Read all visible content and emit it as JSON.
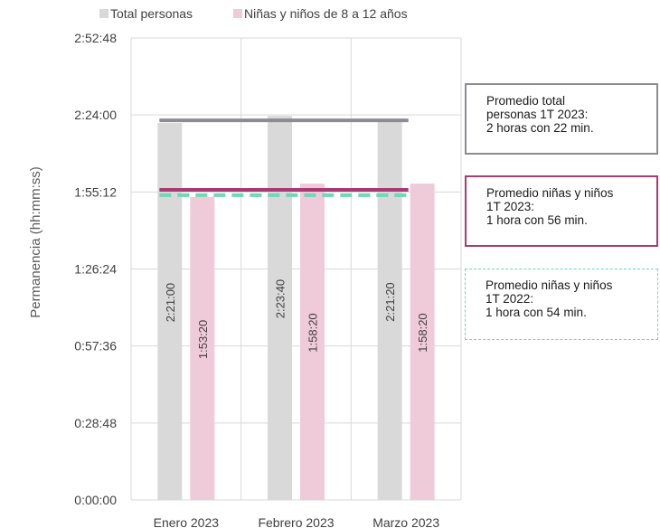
{
  "chart_data": {
    "type": "bar",
    "ylabel": "Permanencia (hh:mm:ss)",
    "categories": [
      "Enero 2023",
      "Febrero 2023",
      "Marzo 2023"
    ],
    "ylim": [
      0,
      10368
    ],
    "yticks": [
      "0:00:00",
      "0:28:48",
      "0:57:36",
      "1:26:24",
      "1:55:12",
      "2:24:00",
      "2:52:48"
    ],
    "ytick_seconds": [
      0,
      1728,
      3456,
      5184,
      6912,
      8640,
      10368
    ],
    "grid": true,
    "legend_position": "top",
    "series": [
      {
        "name": "Total personas",
        "color": "#d9d9d9",
        "values_seconds": [
          8460,
          8620,
          8480
        ],
        "labels": [
          "2:21:00",
          "2:23:40",
          "2:21:20"
        ]
      },
      {
        "name": "Niñas y niños de 8 a 12 años",
        "color": "#efcad9",
        "values_seconds": [
          6800,
          7100,
          7100
        ],
        "labels": [
          "1:53:20",
          "1:58:20",
          "1:58:20"
        ]
      }
    ],
    "reference_lines": [
      {
        "id": "total",
        "value_seconds": 8520,
        "color": "#8c8c94",
        "style": "solid"
      },
      {
        "id": "ninos2023",
        "value_seconds": 6960,
        "color": "#a73b73",
        "style": "solid"
      },
      {
        "id": "ninos2022",
        "value_seconds": 6840,
        "color": "#6fd8b5",
        "style": "dashed"
      }
    ],
    "annotations": [
      {
        "id": "total",
        "border": "#8c8c94",
        "style": "solid",
        "lines": [
          "Promedio total",
          "personas 1T 2023:",
          "2 horas con 22 min."
        ]
      },
      {
        "id": "ninos2023",
        "border": "#a73b73",
        "style": "solid",
        "lines": [
          "Promedio niñas y niños",
          "1T 2023:",
          "1 hora con 56 min."
        ]
      },
      {
        "id": "ninos2022",
        "border": "#6fd8b5",
        "style": "dashed",
        "lines": [
          "Promedio niñas y niños",
          "1T 2022:",
          "1 hora con 54 min."
        ]
      }
    ]
  }
}
